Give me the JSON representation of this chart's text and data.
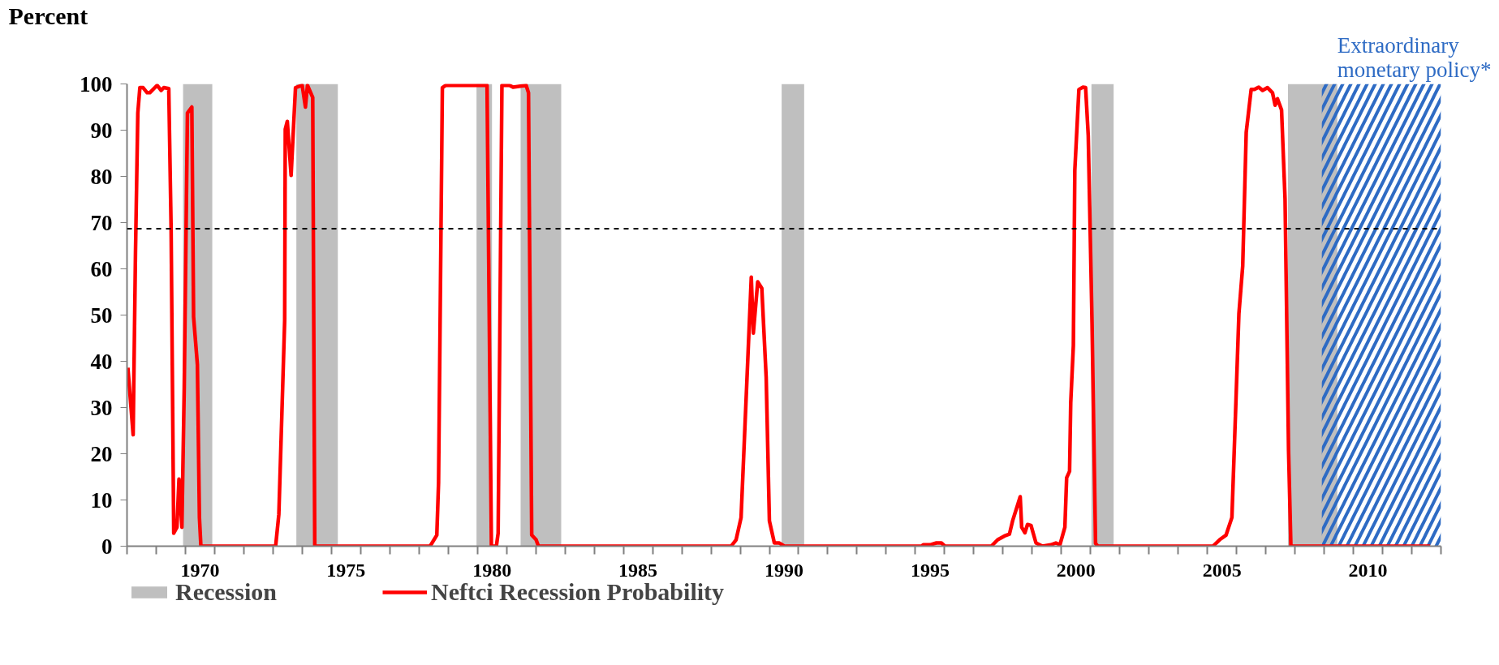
{
  "chart_data": {
    "type": "line",
    "ylabel": "Percent",
    "xlim": [
      1968,
      2013
    ],
    "ylim": [
      0,
      100
    ],
    "yticks": [
      0,
      10,
      20,
      30,
      40,
      50,
      60,
      70,
      80,
      90,
      100
    ],
    "xticks": [
      {
        "value": 1968,
        "label": null
      },
      {
        "value": 1969,
        "label": null
      },
      {
        "value": 1970,
        "label": null
      },
      {
        "value": 1971,
        "label": null
      },
      {
        "value": 1972,
        "label": null
      },
      {
        "value": 1973,
        "label": null
      },
      {
        "value": 1974,
        "label": null
      },
      {
        "value": 1975,
        "label": null
      },
      {
        "value": 1976,
        "label": null
      },
      {
        "value": 1977,
        "label": null
      },
      {
        "value": 1978,
        "label": null
      },
      {
        "value": 1979,
        "label": null
      },
      {
        "value": 1980,
        "label": null
      },
      {
        "value": 1981,
        "label": null
      },
      {
        "value": 1982,
        "label": null
      },
      {
        "value": 1983,
        "label": null
      },
      {
        "value": 1984,
        "label": null
      },
      {
        "value": 1985,
        "label": null
      },
      {
        "value": 1986,
        "label": null
      },
      {
        "value": 1987,
        "label": null
      },
      {
        "value": 1988,
        "label": null
      },
      {
        "value": 1989,
        "label": null
      },
      {
        "value": 1990,
        "label": null
      },
      {
        "value": 1991,
        "label": null
      },
      {
        "value": 1992,
        "label": null
      },
      {
        "value": 1993,
        "label": null
      },
      {
        "value": 1994,
        "label": null
      },
      {
        "value": 1995,
        "label": null
      },
      {
        "value": 1996,
        "label": null
      },
      {
        "value": 1997,
        "label": null
      },
      {
        "value": 1998,
        "label": null
      },
      {
        "value": 1999,
        "label": null
      },
      {
        "value": 2000,
        "label": null
      },
      {
        "value": 2001,
        "label": null
      },
      {
        "value": 2002,
        "label": null
      },
      {
        "value": 2003,
        "label": null
      },
      {
        "value": 2004,
        "label": null
      },
      {
        "value": 2005,
        "label": null
      },
      {
        "value": 2006,
        "label": null
      },
      {
        "value": 2007,
        "label": null
      },
      {
        "value": 2008,
        "label": null
      },
      {
        "value": 2009,
        "label": null
      },
      {
        "value": 2010,
        "label": null
      },
      {
        "value": 2011,
        "label": null
      },
      {
        "value": 2012,
        "label": null
      },
      {
        "value": 2013,
        "label": null
      },
      {
        "value": 1970.5,
        "label": "1970"
      },
      {
        "value": 1975.5,
        "label": "1975"
      },
      {
        "value": 1980.5,
        "label": "1980"
      },
      {
        "value": 1985.5,
        "label": "1985"
      },
      {
        "value": 1990.5,
        "label": "1990"
      },
      {
        "value": 1995.5,
        "label": "1995"
      },
      {
        "value": 2000.5,
        "label": "2000"
      },
      {
        "value": 2005.5,
        "label": "2005"
      },
      {
        "value": 2010.5,
        "label": "2010"
      }
    ],
    "grid": false,
    "legend": "bottom",
    "line_style": "solid",
    "series": [
      {
        "name": "Neftci Recession Probability",
        "color": "#ff0000",
        "x": [
          1968.03,
          1968.21,
          1968.29,
          1968.37,
          1968.44,
          1968.55,
          1968.69,
          1968.78,
          1969.03,
          1969.17,
          1969.26,
          1969.43,
          1969.51,
          1969.6,
          1969.71,
          1969.78,
          1969.88,
          1969.96,
          1970.07,
          1970.22,
          1970.28,
          1970.41,
          1970.48,
          1970.53,
          1973.09,
          1973.2,
          1973.4,
          1973.42,
          1973.49,
          1973.62,
          1973.77,
          1974.0,
          1974.11,
          1974.18,
          1974.36,
          1974.43,
          1978.38,
          1978.61,
          1978.67,
          1978.8,
          1978.92,
          1980.33,
          1980.48,
          1980.65,
          1980.71,
          1980.84,
          1981.1,
          1981.22,
          1981.67,
          1981.75,
          1981.86,
          1982.01,
          1982.09,
          1988.69,
          1988.86,
          1989.03,
          1989.38,
          1989.45,
          1989.6,
          1989.74,
          1989.89,
          1990.0,
          1990.17,
          1990.34,
          1990.51,
          1995.21,
          1995.27,
          1995.5,
          1995.72,
          1995.89,
          1996.01,
          1997.6,
          1997.82,
          1998.05,
          1998.22,
          1998.33,
          1998.59,
          1998.64,
          1998.75,
          1998.84,
          1998.96,
          1999.13,
          1999.35,
          1999.64,
          1999.81,
          1999.95,
          2000.12,
          2000.18,
          2000.28,
          2000.32,
          2000.41,
          2000.46,
          2000.6,
          2000.74,
          2000.83,
          2000.92,
          2001.05,
          2001.17,
          2001.25,
          2005.19,
          2005.42,
          2005.64,
          2005.84,
          2005.98,
          2006.08,
          2006.21,
          2006.33,
          2006.5,
          2006.61,
          2006.76,
          2006.89,
          2007.06,
          2007.23,
          2007.32,
          2007.4,
          2007.54,
          2007.66,
          2007.78,
          2007.86,
          2012.63
        ],
        "values": [
          38.6,
          24.1,
          63.4,
          93.7,
          99.2,
          99.2,
          98.1,
          98.1,
          99.7,
          98.6,
          99.2,
          99.0,
          68.9,
          2.8,
          4.1,
          14.5,
          4.1,
          34.4,
          93.7,
          95.0,
          49.6,
          39.3,
          6.2,
          0,
          0,
          6.9,
          48.9,
          90.2,
          91.9,
          80.2,
          99.2,
          99.7,
          95.0,
          99.7,
          97.1,
          0,
          0,
          2.4,
          13.8,
          99.2,
          99.7,
          99.7,
          0,
          0,
          2.8,
          99.7,
          99.7,
          99.3,
          99.7,
          98.1,
          2.4,
          1.4,
          0,
          0,
          1.4,
          6.2,
          58.2,
          46.1,
          57.2,
          55.8,
          36.5,
          5.5,
          0.7,
          0.7,
          0,
          0,
          0.3,
          0.3,
          0.7,
          0.7,
          0,
          0,
          1.4,
          2.2,
          2.6,
          5.5,
          10.7,
          4.1,
          2.9,
          4.7,
          4.5,
          0.7,
          0,
          0.3,
          0.7,
          0.3,
          4.1,
          14.8,
          16.2,
          31.0,
          43.4,
          81.3,
          98.8,
          99.3,
          99.2,
          88.8,
          48.2,
          0.6,
          0,
          0,
          1.4,
          2.4,
          6.2,
          31.7,
          50.3,
          60.6,
          89.5,
          98.8,
          98.8,
          99.3,
          98.6,
          99.2,
          98.1,
          95.4,
          96.8,
          94.4,
          75.1,
          20.7,
          0,
          0
        ]
      }
    ],
    "bands": [
      {
        "axis": "x",
        "from": 1969.92,
        "to": 1970.92,
        "label": "Recession",
        "color": "#bfbfbf"
      },
      {
        "axis": "x",
        "from": 1973.8,
        "to": 1975.22,
        "color": "#bfbfbf"
      },
      {
        "axis": "x",
        "from": 1979.97,
        "to": 1980.5,
        "color": "#bfbfbf"
      },
      {
        "axis": "x",
        "from": 1981.48,
        "to": 1982.87,
        "color": "#bfbfbf"
      },
      {
        "axis": "x",
        "from": 1990.42,
        "to": 1991.19,
        "color": "#bfbfbf"
      },
      {
        "axis": "x",
        "from": 2001.03,
        "to": 2001.79,
        "color": "#bfbfbf"
      },
      {
        "axis": "x",
        "from": 2007.76,
        "to": 2009.45,
        "color": "#bfbfbf"
      },
      {
        "axis": "x",
        "from": 2008.92,
        "to": 2013,
        "label": "Extraordinary monetary policy*",
        "color": "#2e6bc4"
      }
    ],
    "ref_lines": [
      {
        "axis": "y",
        "value": 68.7,
        "color": "#000000",
        "line_style": "dashed"
      }
    ]
  }
}
